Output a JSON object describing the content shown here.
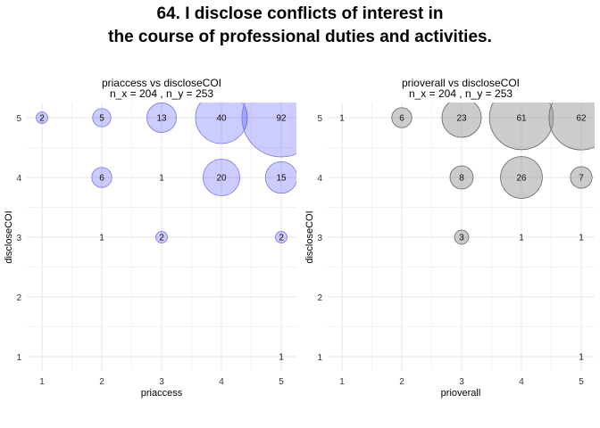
{
  "title_lines": [
    "64. I disclose conflicts of interest in",
    "the course of professional duties and activities."
  ],
  "chart_data": [
    {
      "type": "scatter",
      "subtitle_lines": [
        "priaccess vs discloseCOI",
        "n_x = 204 , n_y = 253"
      ],
      "xlabel": "priaccess",
      "ylabel": "discloseCOI",
      "x_ticks": [
        1,
        2,
        3,
        4,
        5
      ],
      "y_ticks": [
        1,
        2,
        3,
        4,
        5
      ],
      "xlim": [
        0.5,
        5.5
      ],
      "ylim": [
        0.7,
        5.3
      ],
      "fill_color": "#0000ff",
      "fill_opacity": 0.2,
      "stroke_color": "#7777ee",
      "grid": true,
      "points": [
        {
          "x": 1,
          "y": 5,
          "n": 2
        },
        {
          "x": 2,
          "y": 5,
          "n": 5
        },
        {
          "x": 3,
          "y": 5,
          "n": 13
        },
        {
          "x": 4,
          "y": 5,
          "n": 40
        },
        {
          "x": 5,
          "y": 5,
          "n": 92
        },
        {
          "x": 2,
          "y": 4,
          "n": 6
        },
        {
          "x": 3,
          "y": 4,
          "n": 1
        },
        {
          "x": 4,
          "y": 4,
          "n": 20
        },
        {
          "x": 5,
          "y": 4,
          "n": 15
        },
        {
          "x": 2,
          "y": 3,
          "n": 1
        },
        {
          "x": 3,
          "y": 3,
          "n": 2
        },
        {
          "x": 5,
          "y": 3,
          "n": 2
        },
        {
          "x": 5,
          "y": 1,
          "n": 1
        }
      ]
    },
    {
      "type": "scatter",
      "subtitle_lines": [
        "prioverall vs discloseCOI",
        "n_x = 204 , n_y = 253"
      ],
      "xlabel": "prioverall",
      "ylabel": "discloseCOI",
      "x_ticks": [
        1,
        2,
        3,
        4,
        5
      ],
      "y_ticks": [
        1,
        2,
        3,
        4,
        5
      ],
      "xlim": [
        0.5,
        5.5
      ],
      "ylim": [
        0.7,
        5.3
      ],
      "fill_color": "#999999",
      "fill_opacity": 0.5,
      "stroke_color": "#666666",
      "grid": true,
      "points": [
        {
          "x": 1,
          "y": 5,
          "n": 1
        },
        {
          "x": 2,
          "y": 5,
          "n": 6
        },
        {
          "x": 3,
          "y": 5,
          "n": 23
        },
        {
          "x": 4,
          "y": 5,
          "n": 61
        },
        {
          "x": 5,
          "y": 5,
          "n": 62
        },
        {
          "x": 3,
          "y": 4,
          "n": 8
        },
        {
          "x": 4,
          "y": 4,
          "n": 26
        },
        {
          "x": 5,
          "y": 4,
          "n": 7
        },
        {
          "x": 3,
          "y": 3,
          "n": 3
        },
        {
          "x": 4,
          "y": 3,
          "n": 1
        },
        {
          "x": 5,
          "y": 3,
          "n": 1
        },
        {
          "x": 5,
          "y": 1,
          "n": 1
        }
      ]
    }
  ]
}
